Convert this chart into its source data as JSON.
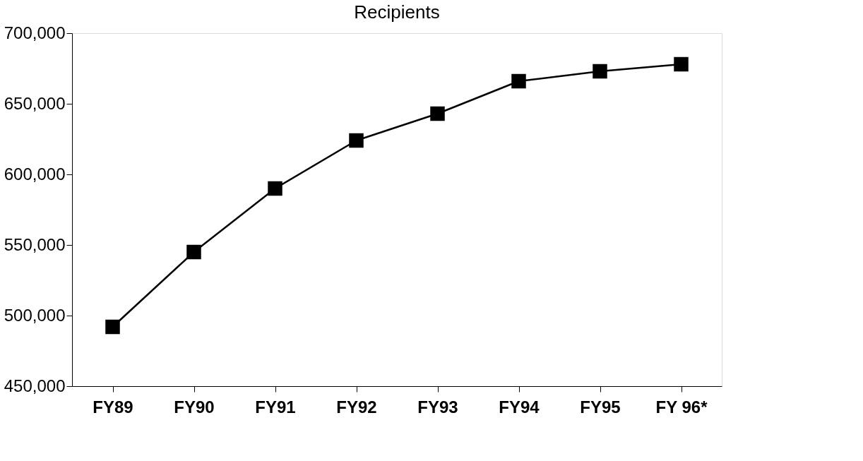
{
  "chart_data": {
    "type": "line",
    "title": "Recipients",
    "categories": [
      "FY89",
      "FY90",
      "FY91",
      "FY92",
      "FY93",
      "FY94",
      "FY95",
      "FY 96*"
    ],
    "series": [
      {
        "color": "#000000",
        "values": [
          492000,
          545000,
          590000,
          624000,
          643000,
          666000,
          673000,
          678000
        ]
      }
    ],
    "ylim": [
      450000,
      700000
    ],
    "yticks": [
      {
        "value": 450000,
        "label": "450,000"
      },
      {
        "value": 500000,
        "label": "500,000"
      },
      {
        "value": 550000,
        "label": "550,000"
      },
      {
        "value": 600000,
        "label": "600,000"
      },
      {
        "value": 650000,
        "label": "650,000"
      },
      {
        "value": 700000,
        "label": "700,000"
      }
    ],
    "grid": false,
    "marker": "square",
    "line_style": "solid"
  }
}
